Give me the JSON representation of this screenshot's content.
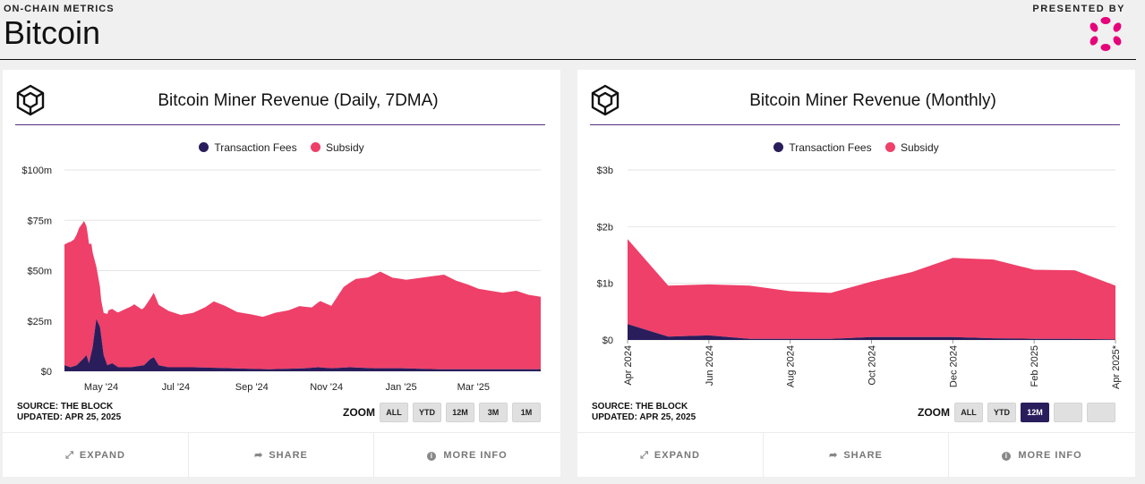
{
  "header": {
    "kicker": "ON-CHAIN METRICS",
    "title": "Bitcoin",
    "presented_by": "PRESENTED BY",
    "logo_icon": "polkadot-logo-icon"
  },
  "colors": {
    "fees": "#2a1d5c",
    "subsidy": "#ee4069",
    "grid": "#e6e6e6",
    "accent": "#5a2d82",
    "logo": "#e6007a"
  },
  "zoom_label": "ZOOM",
  "footer": {
    "expand": "EXPAND",
    "share": "SHARE",
    "more_info": "MORE INFO"
  },
  "charts": [
    {
      "id": "daily",
      "title": "Bitcoin Miner Revenue (Daily, 7DMA)",
      "legend": [
        "Transaction Fees",
        "Subsidy"
      ],
      "source": "SOURCE: THE BLOCK",
      "updated": "UPDATED: APR 25, 2025",
      "zoom_buttons": [
        {
          "label": "ALL",
          "active": false
        },
        {
          "label": "YTD",
          "active": false
        },
        {
          "label": "12M",
          "active": false
        },
        {
          "label": "3M",
          "active": false
        },
        {
          "label": "1M",
          "active": false
        }
      ]
    },
    {
      "id": "monthly",
      "title": "Bitcoin Miner Revenue (Monthly)",
      "legend": [
        "Transaction Fees",
        "Subsidy"
      ],
      "source": "SOURCE: THE BLOCK",
      "updated": "UPDATED: APR 25, 2025",
      "zoom_buttons": [
        {
          "label": "ALL",
          "active": false
        },
        {
          "label": "YTD",
          "active": false
        },
        {
          "label": "12M",
          "active": true
        },
        {
          "label": "",
          "active": false
        },
        {
          "label": "",
          "active": false
        }
      ]
    }
  ],
  "chart_data": [
    {
      "type": "area",
      "stacked": true,
      "title": "Bitcoin Miner Revenue (Daily, 7DMA)",
      "ylim": [
        0,
        100
      ],
      "y_unit": "$m",
      "y_ticks": [
        "$0",
        "$25m",
        "$50m",
        "$75m",
        "$100m"
      ],
      "x_ticks": [
        "May '24",
        "Jul '24",
        "Sep '24",
        "Nov '24",
        "Jan '25",
        "Mar '25"
      ],
      "x_tick_dates": [
        "2024-05-01",
        "2024-07-01",
        "2024-09-01",
        "2024-11-01",
        "2025-01-01",
        "2025-03-01"
      ],
      "xlim": [
        "2024-04-01",
        "2025-04-25"
      ],
      "grid": true,
      "legend_position": "top-center",
      "series": [
        {
          "name": "Transaction Fees",
          "points": [
            [
              "2024-04-01",
              3
            ],
            [
              "2024-04-06",
              2
            ],
            [
              "2024-04-11",
              3
            ],
            [
              "2024-04-16",
              6
            ],
            [
              "2024-04-19",
              8
            ],
            [
              "2024-04-21",
              4
            ],
            [
              "2024-04-24",
              12
            ],
            [
              "2024-04-27",
              26
            ],
            [
              "2024-04-30",
              22
            ],
            [
              "2024-05-03",
              8
            ],
            [
              "2024-05-06",
              3
            ],
            [
              "2024-05-10",
              4
            ],
            [
              "2024-05-15",
              2
            ],
            [
              "2024-05-25",
              2
            ],
            [
              "2024-06-05",
              3
            ],
            [
              "2024-06-10",
              6
            ],
            [
              "2024-06-13",
              7
            ],
            [
              "2024-06-17",
              3
            ],
            [
              "2024-06-25",
              2
            ],
            [
              "2024-07-15",
              2
            ],
            [
              "2024-08-15",
              1.5
            ],
            [
              "2024-09-15",
              1
            ],
            [
              "2024-10-15",
              1.5
            ],
            [
              "2024-10-25",
              2
            ],
            [
              "2024-11-05",
              1.5
            ],
            [
              "2024-11-20",
              2
            ],
            [
              "2024-12-10",
              1.5
            ],
            [
              "2025-01-01",
              1.5
            ],
            [
              "2025-02-01",
              1
            ],
            [
              "2025-03-01",
              1
            ],
            [
              "2025-04-25",
              1
            ]
          ]
        },
        {
          "name": "Subsidy",
          "points": [
            [
              "2024-04-01",
              60
            ],
            [
              "2024-04-05",
              62
            ],
            [
              "2024-04-09",
              63
            ],
            [
              "2024-04-13",
              67
            ],
            [
              "2024-04-17",
              68
            ],
            [
              "2024-04-20",
              62
            ],
            [
              "2024-04-23",
              54
            ],
            [
              "2024-04-27",
              26
            ],
            [
              "2024-05-01",
              18
            ],
            [
              "2024-05-07",
              27
            ],
            [
              "2024-05-14",
              27
            ],
            [
              "2024-05-21",
              29
            ],
            [
              "2024-05-28",
              31
            ],
            [
              "2024-06-03",
              28
            ],
            [
              "2024-06-10",
              30
            ],
            [
              "2024-06-13",
              32
            ],
            [
              "2024-06-17",
              30
            ],
            [
              "2024-06-25",
              28
            ],
            [
              "2024-07-05",
              26
            ],
            [
              "2024-07-15",
              27
            ],
            [
              "2024-07-25",
              30
            ],
            [
              "2024-08-01",
              33
            ],
            [
              "2024-08-10",
              31
            ],
            [
              "2024-08-20",
              28
            ],
            [
              "2024-09-01",
              27
            ],
            [
              "2024-09-10",
              26
            ],
            [
              "2024-09-20",
              28
            ],
            [
              "2024-10-01",
              29
            ],
            [
              "2024-10-10",
              31
            ],
            [
              "2024-10-20",
              30
            ],
            [
              "2024-10-27",
              33
            ],
            [
              "2024-11-05",
              31
            ],
            [
              "2024-11-15",
              40
            ],
            [
              "2024-11-25",
              44
            ],
            [
              "2024-12-05",
              45
            ],
            [
              "2024-12-15",
              48
            ],
            [
              "2024-12-25",
              45
            ],
            [
              "2025-01-05",
              44
            ],
            [
              "2025-01-15",
              45
            ],
            [
              "2025-01-25",
              46
            ],
            [
              "2025-02-05",
              47
            ],
            [
              "2025-02-15",
              44
            ],
            [
              "2025-02-25",
              42
            ],
            [
              "2025-03-05",
              40
            ],
            [
              "2025-03-15",
              39
            ],
            [
              "2025-03-25",
              38
            ],
            [
              "2025-04-05",
              39
            ],
            [
              "2025-04-15",
              37
            ],
            [
              "2025-04-25",
              36
            ]
          ]
        }
      ]
    },
    {
      "type": "area",
      "stacked": true,
      "title": "Bitcoin Miner Revenue (Monthly)",
      "ylim": [
        0,
        3
      ],
      "y_unit": "$b",
      "y_ticks": [
        "$0",
        "$1b",
        "$2b",
        "$3b"
      ],
      "categories": [
        "Apr 2024",
        "May 2024",
        "Jun 2024",
        "Jul 2024",
        "Aug 2024",
        "Sep 2024",
        "Oct 2024",
        "Nov 2024",
        "Dec 2024",
        "Jan 2025",
        "Feb 2025",
        "Mar 2025",
        "Apr 2025*"
      ],
      "tick_labels": [
        "Apr 2024",
        "Jun 2024",
        "Aug 2024",
        "Oct 2024",
        "Dec 2024",
        "Feb 2025",
        "Apr 2025*"
      ],
      "grid": true,
      "legend_position": "top-center",
      "series": [
        {
          "name": "Transaction Fees",
          "values": [
            0.28,
            0.06,
            0.08,
            0.02,
            0.02,
            0.02,
            0.05,
            0.05,
            0.05,
            0.03,
            0.02,
            0.02,
            0.01
          ]
        },
        {
          "name": "Subsidy",
          "values": [
            1.5,
            0.9,
            0.9,
            0.94,
            0.84,
            0.81,
            0.98,
            1.15,
            1.4,
            1.39,
            1.22,
            1.21,
            0.95
          ]
        }
      ]
    }
  ]
}
